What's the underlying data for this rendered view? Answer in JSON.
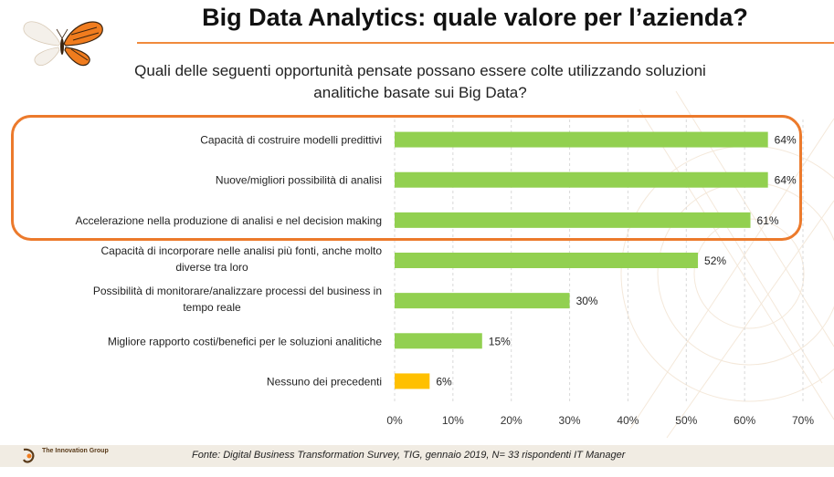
{
  "header": {
    "title": "Big Data Analytics: quale valore per l’azienda?",
    "question_line1": "Quali delle seguenti opportunità pensate possano essere colte utilizzando soluzioni",
    "question_line2": "analitiche basate sui Big Data?"
  },
  "footer": {
    "logo_name": "The Innovation Group",
    "source": "Fonte: Digital Business Transformation Survey, TIG, gennaio 2019, N= 33 rispondenti IT Manager"
  },
  "colors": {
    "bar": "#92d050",
    "bar_none": "#ffc000",
    "highlight": "#ec7a2c",
    "accent_line": "#f08a3c",
    "grid": "#d9d9d9"
  },
  "icons": [
    "butterfly-icon",
    "innovation-group-logo-icon"
  ],
  "chart_data": {
    "type": "bar",
    "orientation": "horizontal",
    "categories": [
      [
        "Capacità di costruire modelli predittivi"
      ],
      [
        "Nuove/migliori possibilità di analisi"
      ],
      [
        "Accelerazione nella produzione di analisi e nel decision making"
      ],
      [
        "Capacità di incorporare nelle analisi più fonti, anche molto",
        "diverse tra loro"
      ],
      [
        "Possibilità di monitorare/analizzare processi del business in",
        "tempo reale"
      ],
      [
        "Migliore rapporto costi/benefici per le soluzioni analitiche"
      ],
      [
        "Nessuno dei precedenti"
      ]
    ],
    "values": [
      64,
      64,
      61,
      52,
      30,
      15,
      6
    ],
    "value_labels": [
      "64%",
      "64%",
      "61%",
      "52%",
      "30%",
      "15%",
      "6%"
    ],
    "highlighted_indices": [
      0,
      1,
      2
    ],
    "xlim": [
      0,
      70
    ],
    "xticks": [
      0,
      10,
      20,
      30,
      40,
      50,
      60,
      70
    ],
    "xtick_labels": [
      "0%",
      "10%",
      "20%",
      "30%",
      "40%",
      "50%",
      "60%",
      "70%"
    ],
    "grid": true,
    "legend": "none"
  }
}
